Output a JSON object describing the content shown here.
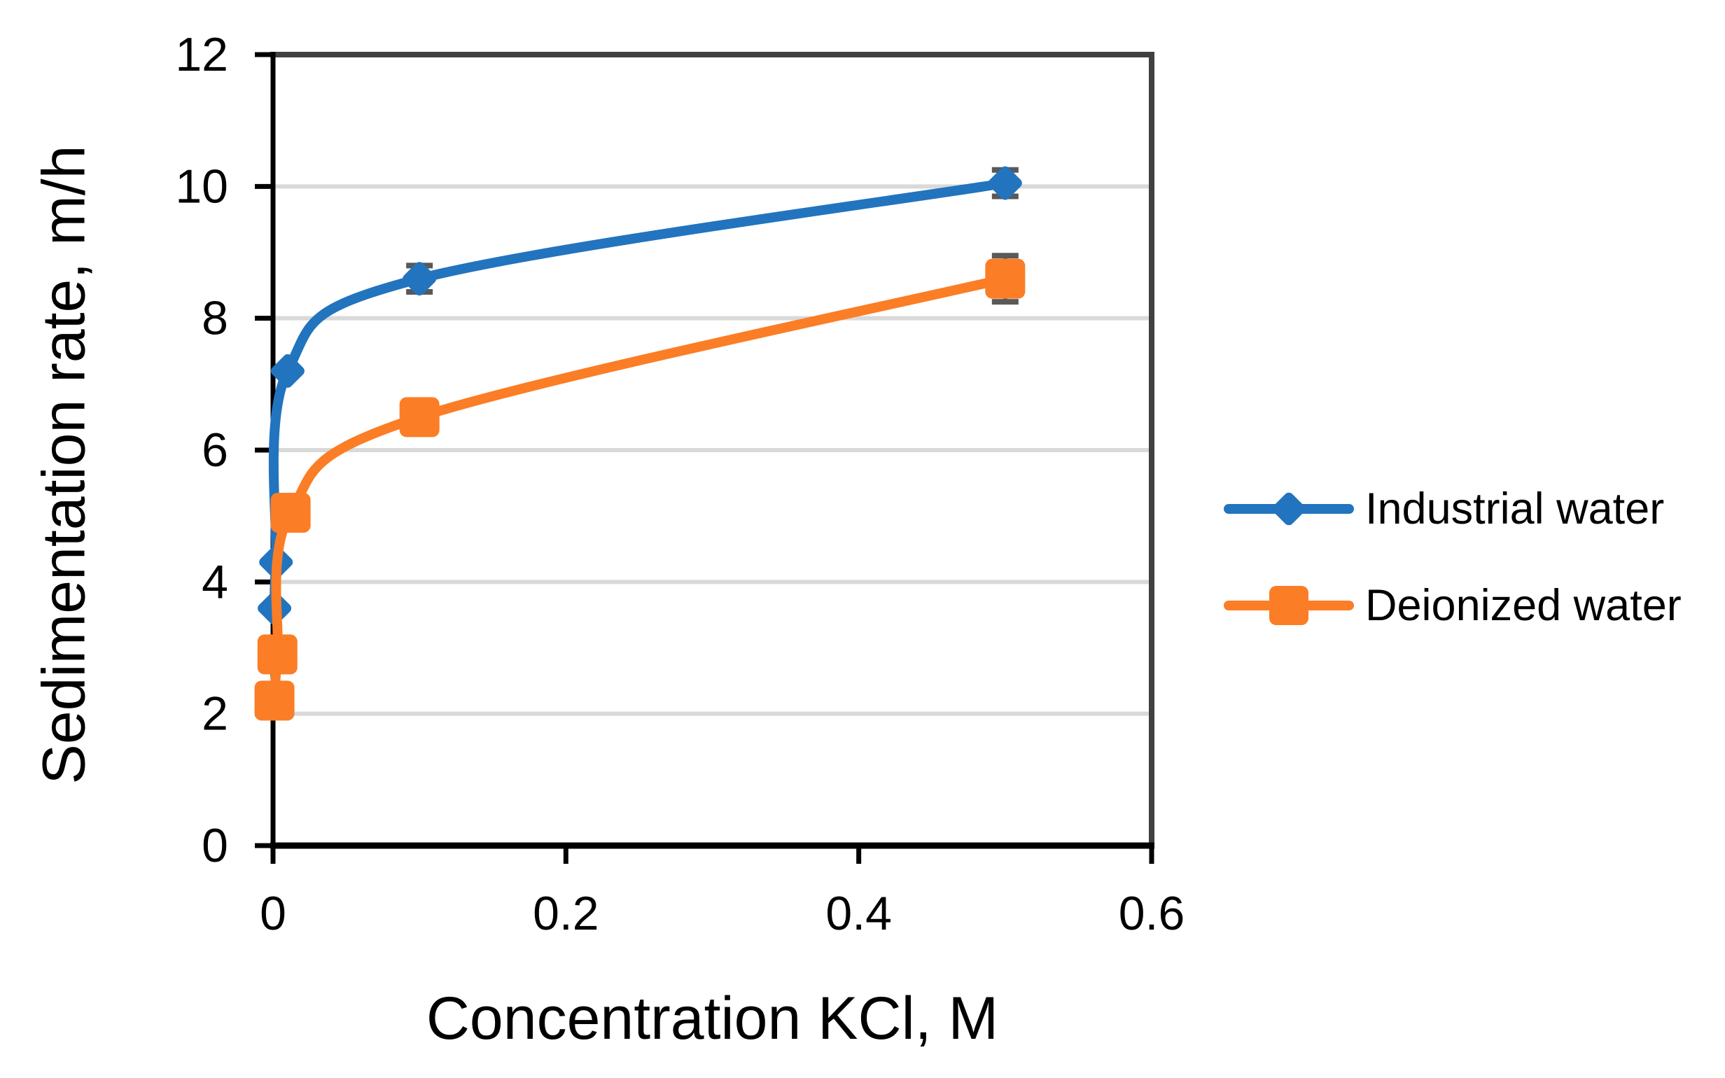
{
  "chart_data": {
    "type": "line",
    "title": "",
    "xlabel": "Concentration KCl, M",
    "ylabel": "Sedimentation rate, m/h",
    "xlim": [
      0,
      0.6
    ],
    "ylim": [
      0,
      12
    ],
    "xticks": [
      0,
      0.2,
      0.4,
      0.6
    ],
    "yticks": [
      0,
      2,
      4,
      6,
      8,
      10,
      12
    ],
    "grid": "horizontal-only",
    "legend_position": "right-middle",
    "series": [
      {
        "name": "Industrial water",
        "color": "#2274BE",
        "marker": "diamond",
        "x": [
          0.001,
          0.002,
          0.01,
          0.1,
          0.5
        ],
        "y": [
          3.6,
          4.3,
          7.2,
          8.6,
          10.05
        ],
        "yerr": [
          0,
          0,
          0,
          0.2,
          0.2
        ]
      },
      {
        "name": "Deionized water",
        "color": "#FB7D26",
        "marker": "square",
        "x": [
          0.001,
          0.003,
          0.012,
          0.1,
          0.5
        ],
        "y": [
          2.2,
          2.9,
          5.05,
          6.5,
          8.6
        ],
        "yerr": [
          0,
          0,
          0,
          0,
          0.35
        ]
      }
    ],
    "colors": {
      "gridline": "#D9D9D9",
      "frame": "#404040",
      "axis": "#000000",
      "error_bar": "#595959",
      "text": "#000000",
      "background": "#FFFFFF"
    }
  }
}
